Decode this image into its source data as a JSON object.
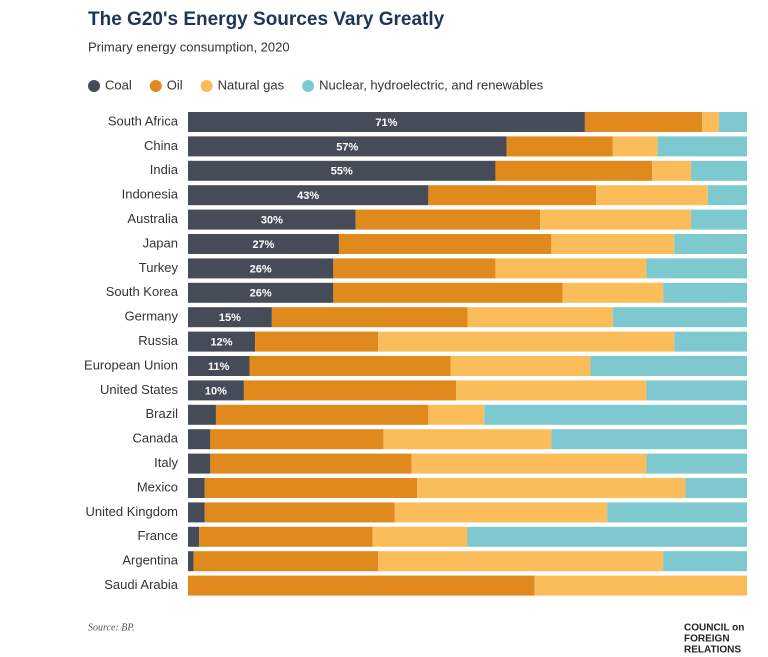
{
  "chart_data": {
    "type": "stacked_bar_horizontal",
    "title": "The G20's Energy Sources Vary Greatly",
    "subtitle": "Primary energy consumption, 2020",
    "categories": [
      "South Africa",
      "China",
      "India",
      "Indonesia",
      "Australia",
      "Japan",
      "Turkey",
      "South Korea",
      "Germany",
      "Russia",
      "European Union",
      "United States",
      "Brazil",
      "Canada",
      "Italy",
      "Mexico",
      "United Kingdom",
      "France",
      "Argentina",
      "Saudi Arabia"
    ],
    "xlim": [
      0,
      100
    ],
    "series": [
      {
        "name": "Coal",
        "color": "#454c57",
        "values": [
          71,
          57,
          55,
          43,
          30,
          27,
          26,
          26,
          15,
          12,
          11,
          10,
          5,
          4,
          4,
          3,
          3,
          2,
          1,
          0
        ],
        "value_labels": [
          "71%",
          "57%",
          "55%",
          "43%",
          "30%",
          "27%",
          "26%",
          "26%",
          "15%",
          "12%",
          "11%",
          "10%",
          null,
          null,
          null,
          null,
          null,
          null,
          null,
          null
        ]
      },
      {
        "name": "Oil",
        "color": "#e08a1e",
        "values": [
          21,
          19,
          28,
          30,
          33,
          38,
          29,
          41,
          35,
          22,
          36,
          38,
          38,
          31,
          36,
          38,
          34,
          31,
          33,
          62
        ]
      },
      {
        "name": "Natural gas",
        "color": "#fbbd5a",
        "values": [
          3,
          8,
          7,
          20,
          27,
          22,
          27,
          18,
          26,
          53,
          25,
          34,
          10,
          30,
          42,
          48,
          38,
          17,
          51,
          38
        ]
      },
      {
        "name": "Nuclear, hydroelectric, and renewables",
        "color": "#7ec8d0",
        "values": [
          5,
          16,
          10,
          7,
          10,
          13,
          18,
          15,
          24,
          13,
          28,
          18,
          47,
          35,
          18,
          11,
          25,
          50,
          15,
          0
        ]
      }
    ],
    "source": "Source: BP.",
    "logo": [
      "COUNCIL on",
      "FOREIGN",
      "RELATIONS"
    ]
  }
}
